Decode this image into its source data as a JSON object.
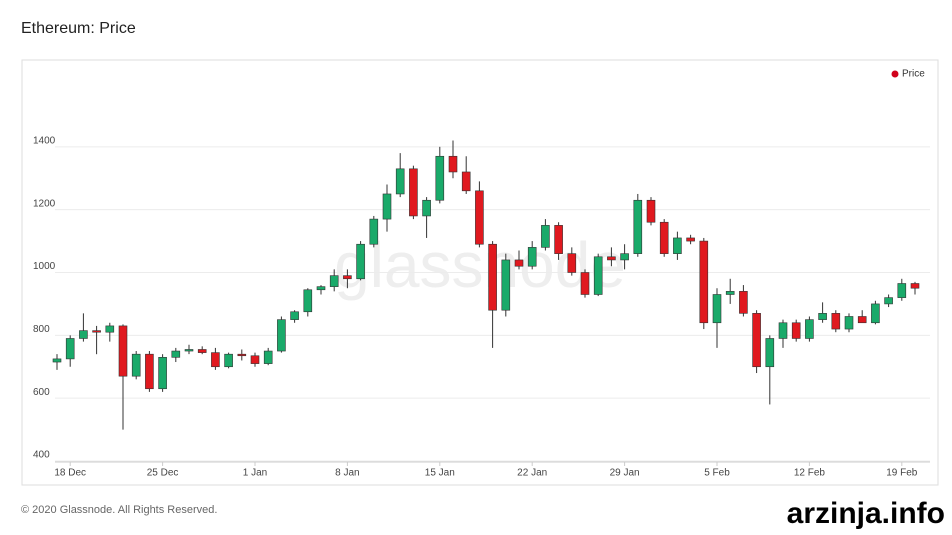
{
  "chart_data": {
    "type": "candlestick",
    "title": "Ethereum: Price",
    "x": [
      "17 Dec",
      "18 Dec",
      "19 Dec",
      "20 Dec",
      "21 Dec",
      "22 Dec",
      "23 Dec",
      "24 Dec",
      "25 Dec",
      "26 Dec",
      "27 Dec",
      "28 Dec",
      "29 Dec",
      "30 Dec",
      "31 Dec",
      "1 Jan",
      "2 Jan",
      "3 Jan",
      "4 Jan",
      "5 Jan",
      "6 Jan",
      "7 Jan",
      "8 Jan",
      "9 Jan",
      "10 Jan",
      "11 Jan",
      "12 Jan",
      "13 Jan",
      "14 Jan",
      "15 Jan",
      "16 Jan",
      "17 Jan",
      "18 Jan",
      "19 Jan",
      "20 Jan",
      "21 Jan",
      "22 Jan",
      "23 Jan",
      "24 Jan",
      "25 Jan",
      "26 Jan",
      "27 Jan",
      "28 Jan",
      "29 Jan",
      "30 Jan",
      "31 Jan",
      "1 Feb",
      "2 Feb",
      "3 Feb",
      "4 Feb",
      "5 Feb",
      "6 Feb",
      "7 Feb",
      "8 Feb",
      "9 Feb",
      "10 Feb",
      "11 Feb",
      "12 Feb",
      "13 Feb",
      "14 Feb",
      "15 Feb",
      "16 Feb",
      "17 Feb",
      "18 Feb",
      "19 Feb",
      "20 Feb"
    ],
    "xticks": [
      "18 Dec",
      "25 Dec",
      "1 Jan",
      "8 Jan",
      "15 Jan",
      "22 Jan",
      "29 Jan",
      "5 Feb",
      "12 Feb",
      "19 Feb"
    ],
    "series": [
      {
        "name": "Price",
        "color": "#d0021b",
        "up_color": "#1aaa6a",
        "down_color": "#e0191f",
        "open": [
          715,
          725,
          790,
          815,
          810,
          830,
          670,
          740,
          630,
          730,
          750,
          755,
          745,
          700,
          740,
          735,
          710,
          750,
          850,
          875,
          945,
          955,
          990,
          980,
          1090,
          1170,
          1250,
          1330,
          1180,
          1230,
          1370,
          1320,
          1260,
          1090,
          880,
          1040,
          1020,
          1080,
          1150,
          1060,
          1000,
          930,
          1050,
          1040,
          1060,
          1230,
          1160,
          1060,
          1110,
          1100,
          840,
          930,
          940,
          870,
          700,
          790,
          840,
          790,
          850,
          870,
          820,
          860,
          840,
          900,
          920,
          965
        ],
        "high": [
          740,
          800,
          870,
          830,
          840,
          835,
          750,
          750,
          740,
          760,
          770,
          765,
          760,
          745,
          755,
          745,
          760,
          860,
          880,
          950,
          960,
          1010,
          1010,
          1100,
          1180,
          1280,
          1380,
          1340,
          1240,
          1400,
          1420,
          1370,
          1290,
          1100,
          1060,
          1070,
          1100,
          1170,
          1160,
          1080,
          1010,
          1060,
          1080,
          1090,
          1250,
          1240,
          1170,
          1130,
          1120,
          1110,
          950,
          980,
          960,
          880,
          800,
          850,
          850,
          860,
          905,
          880,
          870,
          880,
          910,
          930,
          980,
          970
        ],
        "low": [
          690,
          700,
          780,
          740,
          780,
          500,
          660,
          620,
          620,
          715,
          740,
          740,
          690,
          695,
          720,
          700,
          705,
          745,
          840,
          860,
          930,
          940,
          950,
          975,
          1080,
          1130,
          1240,
          1170,
          1110,
          1220,
          1300,
          1250,
          1080,
          760,
          860,
          1010,
          1010,
          1070,
          1040,
          990,
          920,
          925,
          1020,
          1010,
          1050,
          1150,
          1050,
          1040,
          1090,
          820,
          760,
          900,
          860,
          680,
          580,
          760,
          780,
          780,
          840,
          810,
          810,
          840,
          835,
          890,
          910,
          930
        ],
        "close": [
          725,
          790,
          815,
          810,
          830,
          670,
          740,
          630,
          730,
          750,
          755,
          745,
          700,
          740,
          735,
          710,
          750,
          850,
          875,
          945,
          955,
          990,
          980,
          1090,
          1170,
          1250,
          1330,
          1180,
          1230,
          1370,
          1320,
          1260,
          1090,
          880,
          1040,
          1020,
          1080,
          1150,
          1060,
          1000,
          930,
          1050,
          1040,
          1060,
          1230,
          1160,
          1060,
          1110,
          1100,
          840,
          930,
          940,
          870,
          700,
          790,
          840,
          790,
          850,
          870,
          820,
          860,
          840,
          900,
          920,
          965,
          950
        ]
      }
    ],
    "ylim": [
      400,
      1600
    ],
    "yticks": [
      400,
      600,
      800,
      1000,
      1200,
      1400
    ],
    "grid": true,
    "legend": "top-right",
    "watermark": "glassnode"
  },
  "footer": "© 2020 Glassnode. All Rights Reserved.",
  "overlay": "arzinja.info"
}
